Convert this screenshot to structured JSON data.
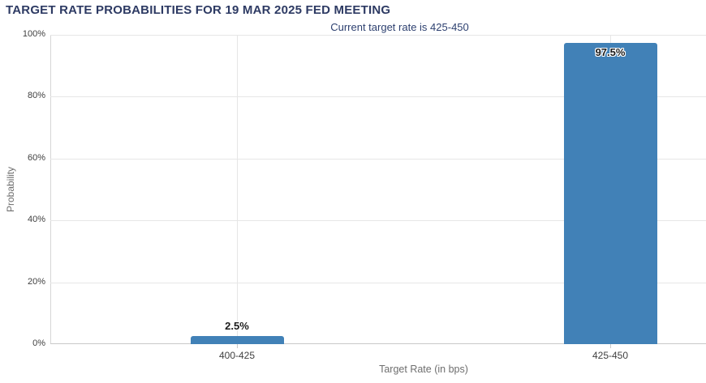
{
  "chart_data": {
    "type": "bar",
    "title": "TARGET RATE PROBABILITIES FOR 19 MAR 2025 FED MEETING",
    "subtitle": "Current target rate is 425-450",
    "xlabel": "Target Rate (in bps)",
    "ylabel": "Probability",
    "categories": [
      "400-425",
      "425-450"
    ],
    "values": [
      2.5,
      97.5
    ],
    "bar_labels": [
      "2.5%",
      "97.5%"
    ],
    "ylim": [
      0,
      100
    ],
    "yticks": [
      0,
      20,
      40,
      60,
      80,
      100
    ],
    "ytick_labels": [
      "0%",
      "20%",
      "40%",
      "60%",
      "80%",
      "100%"
    ],
    "grid": true,
    "legend": "none"
  },
  "colors": {
    "bar": "#4181b7",
    "title": "#2d3a63",
    "subtitle": "#2e4170",
    "gridline": "#e6e6e6",
    "y_axis_line": "#d6d6d6",
    "x_axis_line": "#c9c9c9",
    "tick_label": "#3f3f3f",
    "axis_title": "#6e6e6e",
    "bar_label_text": "#1c1c1c"
  }
}
